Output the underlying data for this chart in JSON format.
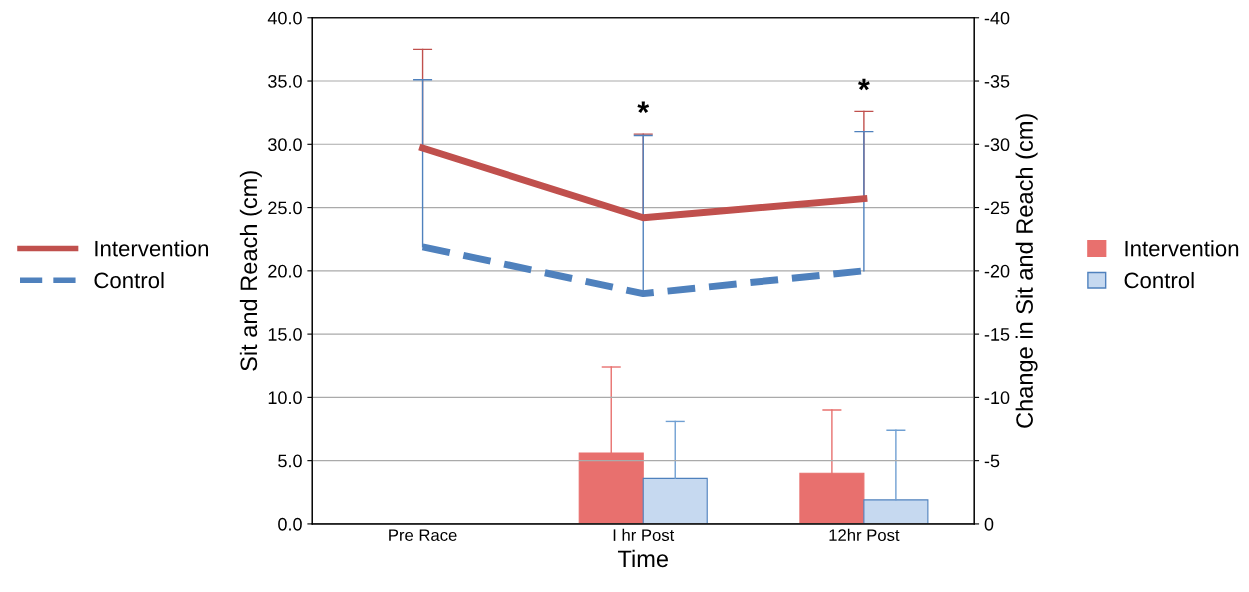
{
  "chart_data": {
    "type": "line",
    "xlabel": "Time",
    "ylabel": "Sit and Reach (cm)",
    "y2label": "Change in Sit and Reach (cm)",
    "categories": [
      "Pre Race",
      "I hr Post",
      "12hr Post"
    ],
    "series": [
      {
        "name": "Intervention",
        "color": "#c0504d",
        "values": [
          29.7,
          24.2,
          25.7
        ],
        "errors": [
          [
            29.7,
            37.5
          ],
          [
            24.2,
            30.8
          ],
          [
            25.7,
            32.6
          ]
        ],
        "line_style": "solid"
      },
      {
        "name": "Control",
        "color": "#4f81bd",
        "values": [
          21.9,
          18.2,
          20.0
        ],
        "errors": [
          [
            21.9,
            35.1
          ],
          [
            18.2,
            30.7
          ],
          [
            20.0,
            31.0
          ]
        ],
        "line_style": "dashed"
      },
      {
        "name": "Intervention",
        "type": "bar",
        "axis": "y2",
        "color": "#e8706e",
        "values": [
          null,
          -5.6,
          -4.0
        ],
        "errors": [
          null,
          [
            -12.4,
            -5.6
          ],
          [
            -9.0,
            -4.0
          ]
        ]
      },
      {
        "name": "Control",
        "type": "bar",
        "axis": "y2",
        "color": "#c6d9f0",
        "values": [
          null,
          -3.6,
          -1.9
        ],
        "errors": [
          null,
          [
            -8.1,
            -3.6
          ],
          [
            -7.4,
            -1.9
          ]
        ]
      }
    ],
    "ylim": [
      0,
      40
    ],
    "yticks": [
      {
        "value": 0,
        "label": "0.0"
      },
      {
        "value": 5,
        "label": "5.0"
      },
      {
        "value": 10,
        "label": "10.0"
      },
      {
        "value": 15,
        "label": "15.0"
      },
      {
        "value": 20,
        "label": "20.0"
      },
      {
        "value": 25,
        "label": "25.0"
      },
      {
        "value": 30,
        "label": "30.0"
      },
      {
        "value": 35,
        "label": "35.0"
      },
      {
        "value": 40,
        "label": "40.0"
      }
    ],
    "y2lim": [
      0,
      -40
    ],
    "y2ticks": [
      0,
      -5,
      -10,
      -15,
      -20,
      -25,
      -30,
      -35,
      -40
    ],
    "annotations": [
      "*",
      "*"
    ],
    "grid": "y",
    "legend": "left"
  }
}
